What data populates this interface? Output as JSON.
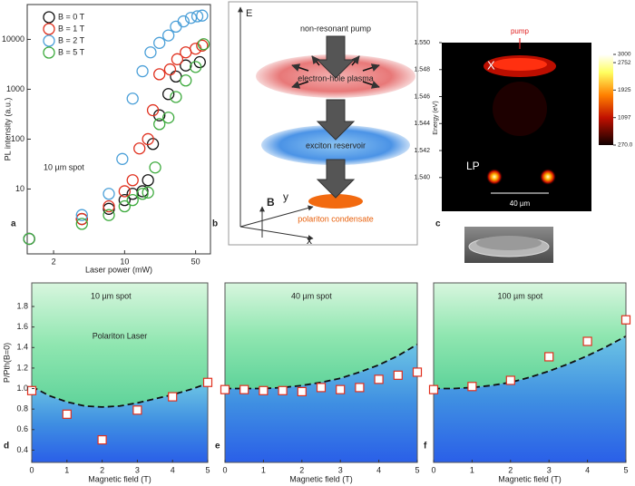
{
  "chart_data": [
    {
      "type": "scatter",
      "panel_label": "a",
      "text": "10 µm spot",
      "xlabel": "Laser power (mW)",
      "ylabel": "PL intensity (a.u.)",
      "xscale": "log",
      "yscale": "log",
      "xlim": [
        1.1,
        70
      ],
      "ylim": [
        0.5,
        50000
      ],
      "xticks": [
        2,
        10,
        50
      ],
      "yticks": [
        10,
        100,
        1000,
        10000
      ],
      "legend": "upper left",
      "series": [
        {
          "name": "B = 0 T",
          "color": "#111111",
          "x": [
            1.15,
            3.8,
            7,
            10,
            12,
            15,
            17,
            19,
            22,
            27,
            32,
            40,
            55
          ],
          "values": [
            1,
            2.5,
            4,
            6,
            8,
            9,
            15,
            80,
            300,
            800,
            1800,
            3000,
            3500
          ]
        },
        {
          "name": "B = 1 T",
          "color": "#e0301e",
          "x": [
            1.15,
            3.8,
            7,
            10,
            12,
            14,
            17,
            19,
            22,
            28,
            33,
            40,
            50,
            58
          ],
          "values": [
            1,
            2.5,
            4.5,
            9,
            15,
            65,
            100,
            380,
            2000,
            2500,
            4000,
            5500,
            6500,
            7500
          ]
        },
        {
          "name": "B = 2 T",
          "color": "#4a9fd8",
          "x": [
            1.15,
            3.8,
            7,
            9.5,
            12,
            15,
            18,
            22,
            27,
            32,
            38,
            45,
            52,
            58
          ],
          "values": [
            1,
            3,
            8,
            40,
            650,
            2300,
            5500,
            8500,
            12000,
            18000,
            23000,
            27000,
            29000,
            30000
          ]
        },
        {
          "name": "B = 5 T",
          "color": "#3daa3d",
          "x": [
            1.15,
            3.8,
            7,
            10,
            12,
            15,
            17,
            20,
            22,
            27,
            32,
            40,
            50,
            60
          ],
          "values": [
            1,
            2,
            3,
            4.5,
            6,
            8,
            8.5,
            27,
            200,
            270,
            700,
            1500,
            2800,
            8000
          ]
        }
      ]
    },
    {
      "type": "heatmap",
      "panel_label": "c",
      "ylabel": "Energy (eV)",
      "ylim": [
        1.5375,
        1.55
      ],
      "yticks": [
        {
          "value": 1.55,
          "label": "1.550"
        },
        {
          "value": 1.548,
          "label": "1.548"
        },
        {
          "value": 1.546,
          "label": "1.546"
        },
        {
          "value": 1.544,
          "label": "1.544"
        },
        {
          "value": 1.542,
          "label": "1.542"
        },
        {
          "value": 1.54,
          "label": "1.540"
        }
      ],
      "annotations": {
        "pump": "pump",
        "exciton": "X",
        "polariton": "LP",
        "scale": "40 µm"
      },
      "colorbar": {
        "lim": [
          270,
          3000
        ],
        "ticks": [
          3000,
          2752,
          1925,
          1097,
          {
            "value": 270,
            "label": "270.0"
          }
        ]
      }
    },
    {
      "type": "threshold",
      "panel_label": "d",
      "title": "10 µm spot",
      "annotation": "Polariton Laser",
      "xlabel": "Magnetic field (T)",
      "ylabel": "P/Pth(B=0)",
      "xlim": [
        0,
        5
      ],
      "ylim": [
        0.28,
        2.03
      ],
      "xticks": [
        0,
        1,
        2,
        3,
        4,
        5
      ],
      "yticks": [
        0.4,
        0.6,
        0.8,
        {
          "value": 1,
          "label": "1.0"
        },
        1.2,
        1.4,
        1.6,
        1.8
      ],
      "threshold": {
        "x": [
          0,
          0.5,
          1,
          1.5,
          2,
          2.5,
          3,
          3.5,
          4,
          4.5,
          5
        ],
        "values": [
          1.02,
          0.93,
          0.87,
          0.83,
          0.82,
          0.83,
          0.86,
          0.9,
          0.94,
          0.99,
          1.05
        ]
      },
      "points": {
        "x": [
          0,
          1,
          2,
          3,
          4,
          5
        ],
        "values": [
          0.98,
          0.75,
          0.5,
          0.79,
          0.92,
          1.06
        ]
      },
      "color": "#e0301e"
    },
    {
      "type": "threshold",
      "panel_label": "e",
      "title": "40 µm spot",
      "xlabel": "Magnetic field (T)",
      "xlim": [
        0,
        5
      ],
      "ylim": [
        0.28,
        2.03
      ],
      "xticks": [
        0,
        1,
        2,
        3,
        4,
        5
      ],
      "threshold": {
        "x": [
          0,
          0.5,
          1,
          1.5,
          2,
          2.5,
          3,
          3.5,
          4,
          4.5,
          5
        ],
        "values": [
          1.0,
          1.0,
          1.0,
          1.01,
          1.03,
          1.06,
          1.1,
          1.16,
          1.23,
          1.32,
          1.43
        ]
      },
      "points": {
        "x": [
          0,
          0.5,
          1,
          1.5,
          2,
          2.5,
          3,
          3.5,
          4,
          4.5,
          5
        ],
        "values": [
          0.99,
          0.99,
          0.98,
          0.98,
          0.97,
          1.01,
          0.99,
          1.01,
          1.09,
          1.13,
          1.16
        ]
      },
      "color": "#e0301e"
    },
    {
      "type": "threshold",
      "panel_label": "f",
      "title": "100 µm spot",
      "xlabel": "Magnetic field (T)",
      "xlim": [
        0,
        5
      ],
      "ylim": [
        0.28,
        2.03
      ],
      "xticks": [
        0,
        1,
        2,
        3,
        4,
        5
      ],
      "threshold": {
        "x": [
          0,
          0.5,
          1,
          1.5,
          2,
          2.5,
          3,
          3.5,
          4,
          4.5,
          5
        ],
        "values": [
          1.0,
          1.0,
          1.01,
          1.03,
          1.06,
          1.11,
          1.17,
          1.24,
          1.32,
          1.41,
          1.51
        ]
      },
      "points": {
        "x": [
          0,
          1,
          2,
          3,
          4,
          5
        ],
        "values": [
          0.99,
          1.02,
          1.08,
          1.31,
          1.46,
          1.67
        ]
      },
      "color": "#e0301e"
    }
  ],
  "diagram": {
    "panel_label": "b",
    "labels": {
      "energy": "E",
      "pump": "non-resonant pump",
      "plasma": "electron-hole plasma",
      "reservoir": "exciton reservoir",
      "condensate": "polariton condensate",
      "y": "y",
      "x": "x",
      "field": "B"
    }
  }
}
